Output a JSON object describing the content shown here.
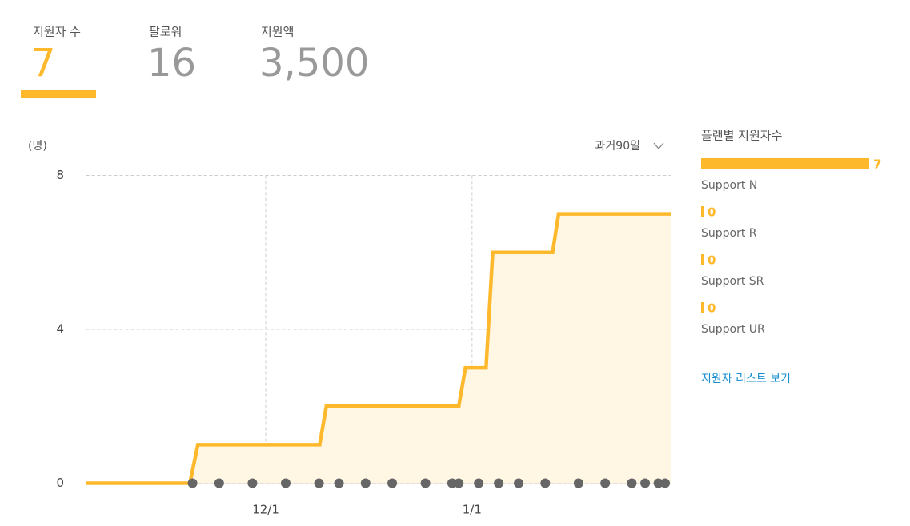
{
  "tabs": [
    {
      "label": "지원자 수",
      "value": "7"
    },
    {
      "label": "팔로워",
      "value": "16"
    },
    {
      "label": "지원액",
      "value": "3,500"
    }
  ],
  "active_tab": 0,
  "chart_data": {
    "type": "line",
    "y_label": "(명)",
    "period": "과거90일",
    "xlim": [
      0,
      87.9
    ],
    "xticks": [
      {
        "value": 27,
        "label": "12/1"
      },
      {
        "value": 58,
        "label": "1/1"
      }
    ],
    "ylim": [
      0,
      8
    ],
    "yticks": [
      0,
      4,
      8
    ],
    "grid": true,
    "line": {
      "color": "#fdb92b",
      "fill": "#fff6e4",
      "x": [
        0,
        15.6,
        16.8,
        35.1,
        36.1,
        56,
        57,
        60.1,
        61.1,
        70.1,
        71,
        87.9
      ],
      "values": [
        0,
        0,
        1,
        1,
        2,
        2,
        3,
        3,
        6,
        6,
        7,
        7
      ]
    },
    "dots": {
      "color": "#666666",
      "x": [
        16,
        20,
        25,
        30,
        35,
        38,
        42,
        46,
        51,
        55,
        56,
        59,
        62,
        65,
        69,
        74,
        78,
        82,
        84,
        86,
        87
      ],
      "values": [
        0,
        0,
        0,
        0,
        0,
        0,
        0,
        0,
        0,
        0,
        0,
        0,
        0,
        0,
        0,
        0,
        0,
        0,
        0,
        0,
        0
      ]
    }
  },
  "plans": {
    "title": "플랜별 지원자수",
    "color": "#fdb92b",
    "items": [
      {
        "name": "Support N",
        "value": 7
      },
      {
        "name": "Support R",
        "value": 0
      },
      {
        "name": "Support SR",
        "value": 0
      },
      {
        "name": "Support UR",
        "value": 0
      }
    ]
  },
  "link": "지원자 리스트 보기"
}
